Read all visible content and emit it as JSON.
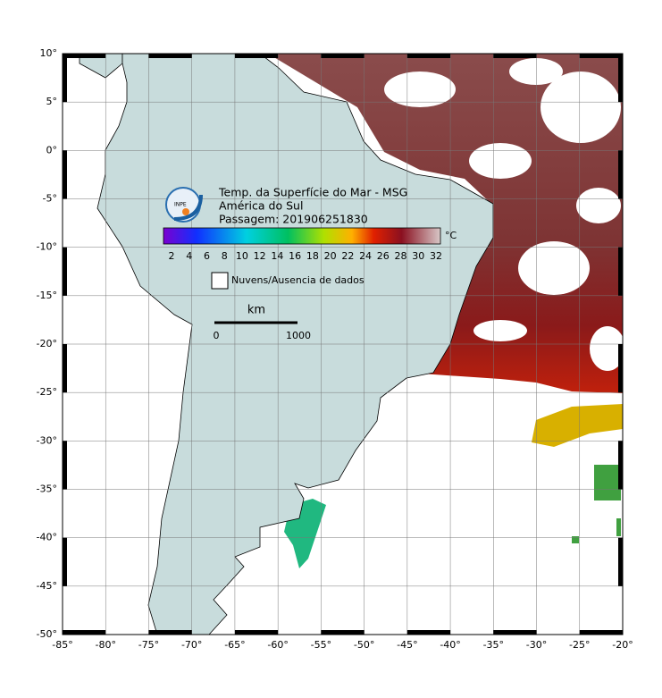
{
  "map": {
    "title_lines": [
      "Temp. da Superfície do Mar - MSG",
      "América do Sul",
      "Passagem: 201906251830"
    ],
    "logo_text": "INPE",
    "lonlim": [
      -85,
      -20
    ],
    "latlim": [
      -50,
      10
    ],
    "lonticks": [
      {
        "value": -85,
        "label": "-85°"
      },
      {
        "value": -80,
        "label": "-80°"
      },
      {
        "value": -75,
        "label": "-75°"
      },
      {
        "value": -70,
        "label": "-70°"
      },
      {
        "value": -65,
        "label": "-65°"
      },
      {
        "value": -60,
        "label": "-60°"
      },
      {
        "value": -55,
        "label": "-55°"
      },
      {
        "value": -50,
        "label": "-50°"
      },
      {
        "value": -45,
        "label": "-45°"
      },
      {
        "value": -40,
        "label": "-40°"
      },
      {
        "value": -35,
        "label": "-35°"
      },
      {
        "value": -30,
        "label": "-30°"
      },
      {
        "value": -25,
        "label": "-25°"
      },
      {
        "value": -20,
        "label": "-20°"
      }
    ],
    "latticks": [
      {
        "value": 10,
        "label": "10°"
      },
      {
        "value": 5,
        "label": "5°"
      },
      {
        "value": 0,
        "label": "0°"
      },
      {
        "value": -5,
        "label": "-5°"
      },
      {
        "value": -10,
        "label": "-10°"
      },
      {
        "value": -15,
        "label": "-15°"
      },
      {
        "value": -20,
        "label": "-20°"
      },
      {
        "value": -25,
        "label": "-25°"
      },
      {
        "value": -30,
        "label": "-30°"
      },
      {
        "value": -35,
        "label": "-35°"
      },
      {
        "value": -40,
        "label": "-40°"
      },
      {
        "value": -45,
        "label": "-45°"
      },
      {
        "value": -50,
        "label": "-50°"
      }
    ],
    "colorbar": {
      "ticks": [
        2,
        4,
        6,
        8,
        10,
        12,
        14,
        16,
        18,
        20,
        22,
        24,
        26,
        28,
        30,
        32
      ],
      "unit": "°C"
    },
    "legend": "Nuvens/Ausencia de dados",
    "scale_bar": {
      "unit": "km",
      "start": "0",
      "end": "1000"
    }
  }
}
